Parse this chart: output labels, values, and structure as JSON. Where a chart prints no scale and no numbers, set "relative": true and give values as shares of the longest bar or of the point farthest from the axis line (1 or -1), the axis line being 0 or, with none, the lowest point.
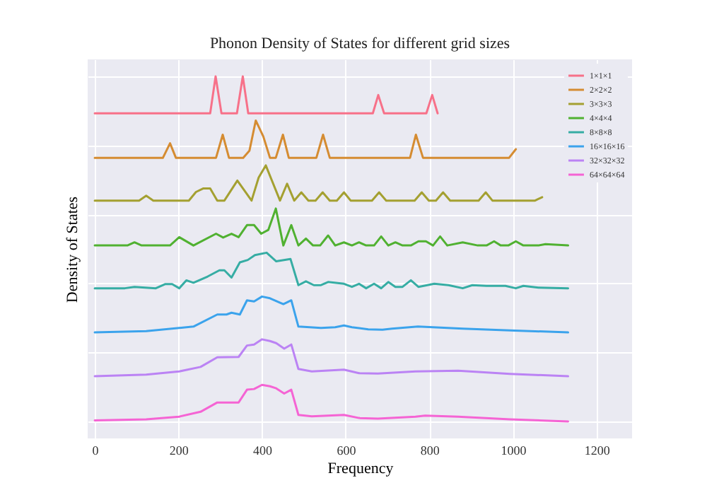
{
  "chart_data": {
    "type": "line",
    "title": "Phonon Density of States for different grid sizes",
    "xlabel": "Frequency",
    "ylabel": "Density of States",
    "relative": true,
    "grid": true,
    "legend": "top right",
    "tick_labels": "x",
    "xlim": [
      -17,
      1285
    ],
    "xticks": [
      0,
      200,
      400,
      600,
      800,
      1000,
      1200
    ],
    "series": [
      {
        "name": "1×1×1",
        "color": "#f77189",
        "x": [
          0,
          276,
          289,
          303,
          340,
          354,
          367,
          665,
          678,
          692,
          793,
          807,
          820
        ],
        "values": [
          0.893,
          0.893,
          1.0,
          0.893,
          0.893,
          1.0,
          0.893,
          0.893,
          0.946,
          0.893,
          0.893,
          0.946,
          0.893
        ]
      },
      {
        "name": "2×2×2",
        "color": "#d58c32",
        "x": [
          0,
          163,
          180,
          194,
          290,
          306,
          321,
          355,
          370,
          385,
          403,
          419,
          433,
          450,
          464,
          530,
          546,
          562,
          754,
          768,
          785,
          991,
          1007
        ],
        "values": [
          0.764,
          0.764,
          0.806,
          0.764,
          0.764,
          0.831,
          0.764,
          0.764,
          0.785,
          0.872,
          0.826,
          0.764,
          0.764,
          0.831,
          0.764,
          0.764,
          0.831,
          0.764,
          0.764,
          0.831,
          0.764,
          0.764,
          0.789
        ]
      },
      {
        "name": "3×3×3",
        "color": "#a4a031",
        "x": [
          0,
          106,
          123,
          140,
          225,
          242,
          259,
          276,
          293,
          310,
          341,
          375,
          392,
          409,
          443,
          460,
          477,
          494,
          511,
          528,
          545,
          562,
          579,
          596,
          612,
          663,
          680,
          697,
          765,
          782,
          799,
          816,
          833,
          850,
          918,
          935,
          951,
          1053,
          1070
        ],
        "values": [
          0.64,
          0.64,
          0.654,
          0.64,
          0.64,
          0.665,
          0.675,
          0.675,
          0.64,
          0.64,
          0.698,
          0.64,
          0.707,
          0.742,
          0.64,
          0.689,
          0.64,
          0.664,
          0.64,
          0.64,
          0.664,
          0.64,
          0.64,
          0.664,
          0.64,
          0.64,
          0.664,
          0.64,
          0.64,
          0.664,
          0.64,
          0.64,
          0.664,
          0.64,
          0.64,
          0.664,
          0.64,
          0.64,
          0.65
        ]
      },
      {
        "name": "4×4×4",
        "color": "#50b131",
        "x": [
          0,
          78,
          95,
          112,
          180,
          202,
          236,
          290,
          307,
          327,
          344,
          364,
          381,
          398,
          415,
          433,
          451,
          470,
          487,
          505,
          522,
          539,
          558,
          575,
          596,
          615,
          632,
          649,
          668,
          685,
          702,
          719,
          736,
          756,
          774,
          792,
          809,
          826,
          843,
          880,
          916,
          937,
          955,
          971,
          989,
          1007,
          1025,
          1061,
          1078,
          1132
        ],
        "values": [
          0.51,
          0.51,
          0.519,
          0.51,
          0.51,
          0.534,
          0.51,
          0.544,
          0.533,
          0.544,
          0.534,
          0.569,
          0.569,
          0.544,
          0.555,
          0.617,
          0.51,
          0.569,
          0.51,
          0.53,
          0.51,
          0.51,
          0.539,
          0.51,
          0.519,
          0.51,
          0.519,
          0.51,
          0.51,
          0.536,
          0.51,
          0.519,
          0.51,
          0.51,
          0.522,
          0.522,
          0.51,
          0.536,
          0.51,
          0.519,
          0.51,
          0.51,
          0.522,
          0.51,
          0.51,
          0.522,
          0.51,
          0.51,
          0.514,
          0.51
        ]
      },
      {
        "name": "8×8×8",
        "color": "#36ada4",
        "x": [
          0,
          72,
          95,
          146,
          168,
          185,
          202,
          219,
          236,
          270,
          298,
          310,
          327,
          347,
          366,
          383,
          411,
          434,
          468,
          487,
          505,
          524,
          541,
          558,
          596,
          615,
          632,
          649,
          668,
          685,
          702,
          719,
          736,
          756,
          774,
          812,
          846,
          880,
          903,
          937,
          982,
          1007,
          1025,
          1061,
          1132
        ],
        "values": [
          0.386,
          0.386,
          0.39,
          0.386,
          0.398,
          0.398,
          0.386,
          0.409,
          0.402,
          0.42,
          0.438,
          0.438,
          0.417,
          0.461,
          0.468,
          0.482,
          0.489,
          0.464,
          0.471,
          0.395,
          0.406,
          0.395,
          0.395,
          0.404,
          0.399,
          0.39,
          0.399,
          0.386,
          0.399,
          0.386,
          0.404,
          0.39,
          0.39,
          0.409,
          0.39,
          0.399,
          0.395,
          0.386,
          0.395,
          0.393,
          0.393,
          0.386,
          0.393,
          0.388,
          0.386
        ]
      },
      {
        "name": "16×16×16",
        "color": "#3ba3ec",
        "x": [
          0,
          123,
          236,
          293,
          315,
          327,
          347,
          364,
          381,
          400,
          419,
          451,
          470,
          487,
          541,
          575,
          596,
          615,
          654,
          688,
          711,
          773,
          880,
          993,
          1132
        ],
        "values": [
          0.258,
          0.262,
          0.275,
          0.31,
          0.31,
          0.315,
          0.31,
          0.351,
          0.348,
          0.362,
          0.357,
          0.34,
          0.351,
          0.275,
          0.271,
          0.273,
          0.278,
          0.273,
          0.267,
          0.266,
          0.269,
          0.275,
          0.269,
          0.264,
          0.258
        ]
      },
      {
        "name": "32×32×32",
        "color": "#bb83f4",
        "x": [
          0,
          123,
          202,
          253,
          293,
          344,
          364,
          381,
          400,
          419,
          434,
          453,
          470,
          487,
          519,
          596,
          632,
          677,
          767,
          869,
          993,
          1132
        ],
        "values": [
          0.131,
          0.136,
          0.145,
          0.158,
          0.186,
          0.187,
          0.22,
          0.223,
          0.238,
          0.233,
          0.227,
          0.211,
          0.223,
          0.152,
          0.145,
          0.15,
          0.14,
          0.139,
          0.145,
          0.147,
          0.138,
          0.131
        ]
      },
      {
        "name": "64×64×64",
        "color": "#f564d4",
        "x": [
          0,
          123,
          202,
          253,
          293,
          344,
          364,
          381,
          400,
          419,
          434,
          453,
          470,
          487,
          519,
          596,
          632,
          677,
          767,
          790,
          869,
          993,
          1132
        ],
        "values": [
          0.003,
          0.006,
          0.014,
          0.028,
          0.055,
          0.055,
          0.092,
          0.094,
          0.106,
          0.102,
          0.096,
          0.081,
          0.092,
          0.019,
          0.015,
          0.019,
          0.01,
          0.008,
          0.014,
          0.017,
          0.014,
          0.006,
          0
        ]
      }
    ]
  }
}
